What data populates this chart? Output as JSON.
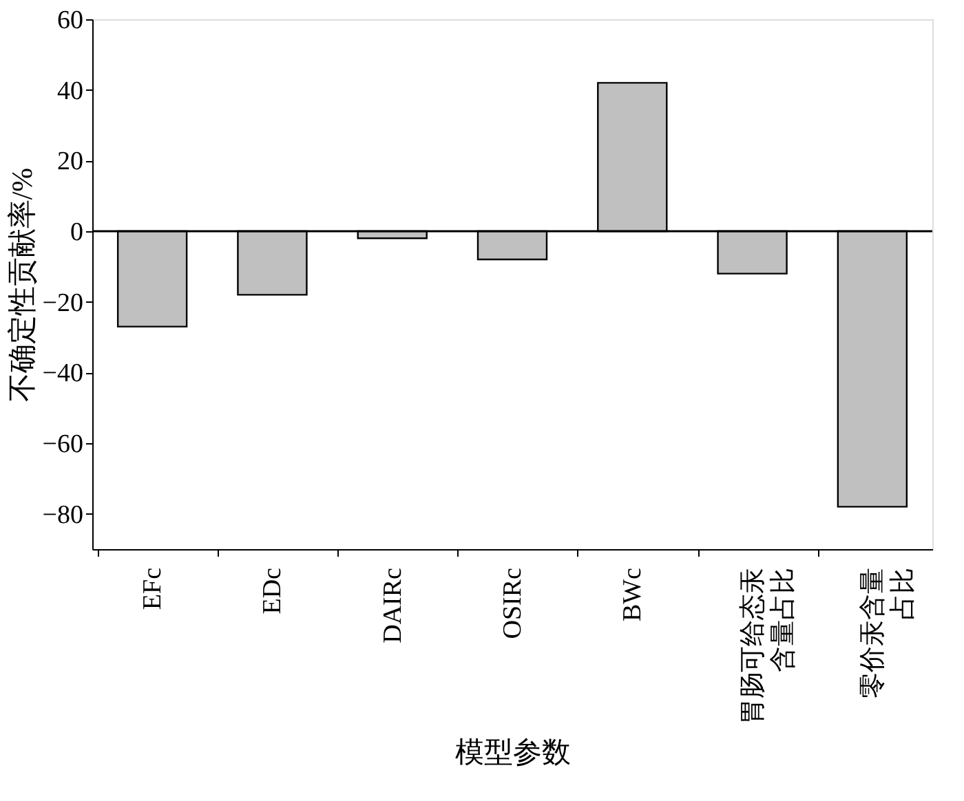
{
  "chart_data": {
    "type": "bar",
    "xlabel": "模型参数",
    "ylabel": "不确定性贡献率/%",
    "categories": [
      "EFc",
      "EDc",
      "DAIRc",
      "OSIRc",
      "BWc",
      "胃肠可给态汞含量占比",
      "零价汞含量占比"
    ],
    "values": [
      -27,
      -18,
      -2,
      -8,
      42,
      -12,
      -78
    ],
    "color": "#c0c0c0",
    "ylim": [
      -90,
      60
    ],
    "yticks": [
      -80,
      -60,
      -40,
      -20,
      0,
      20,
      40,
      60
    ],
    "grid": false,
    "ref_lines": [
      {
        "axis": "y",
        "value": 0
      }
    ]
  }
}
